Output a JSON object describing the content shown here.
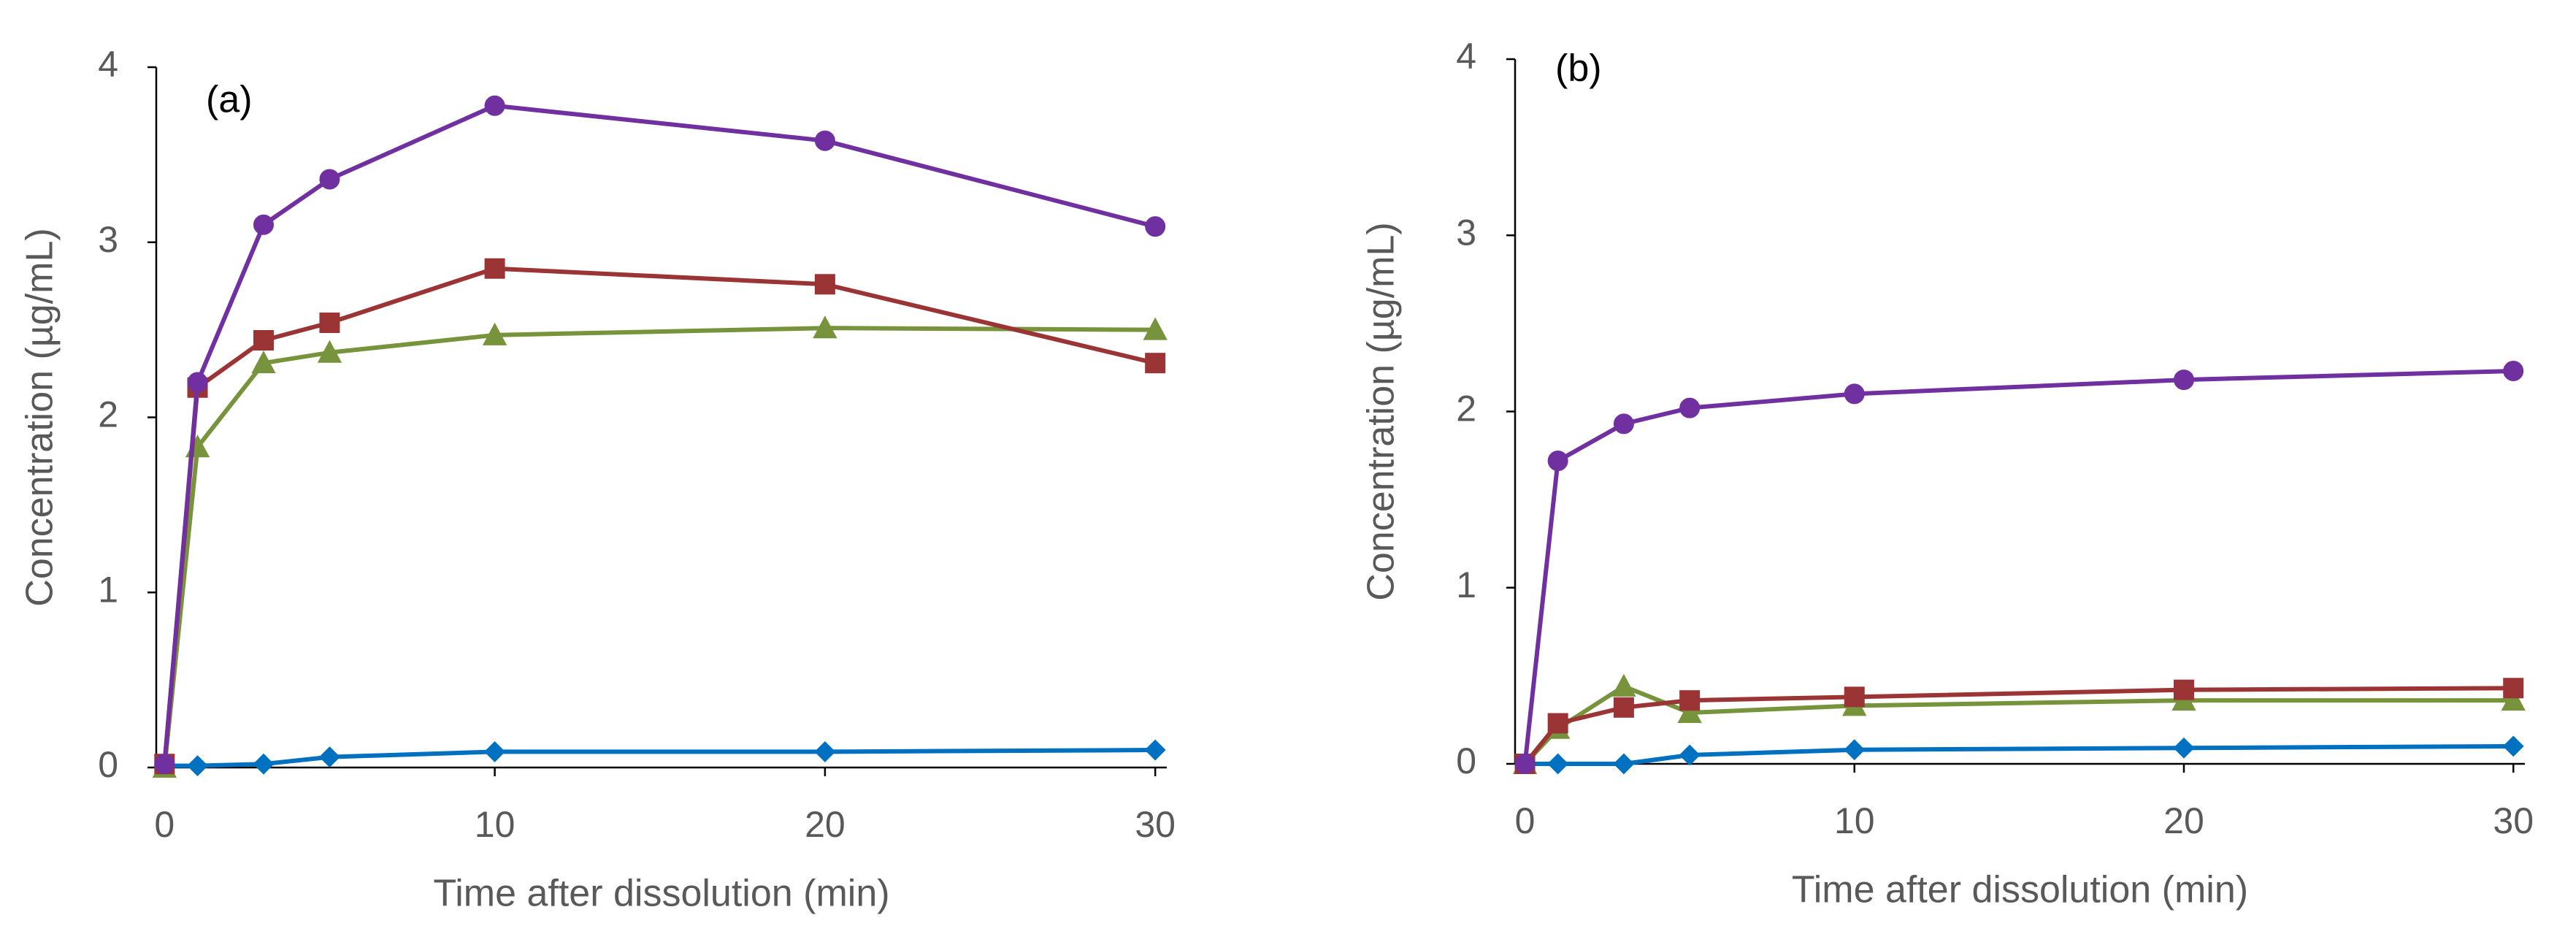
{
  "chart_data": [
    {
      "type": "line",
      "annotation": "(a)",
      "x_label": "Time after dissolution (min)",
      "y_label": "Concentration (µg/mL)",
      "x": [
        0,
        1,
        3,
        5,
        10,
        20,
        30
      ],
      "xlim": [
        -0.25,
        30.35
      ],
      "xticks": [
        0,
        10,
        20,
        30
      ],
      "ylim": [
        0,
        4
      ],
      "yticks": [
        0,
        1,
        2,
        3,
        4
      ],
      "series": [
        {
          "color": "#0070c0",
          "marker": "diamond",
          "values": [
            0.01,
            0.01,
            0.02,
            0.06,
            0.09,
            0.09,
            0.1
          ]
        },
        {
          "color": "#77933c",
          "marker": "triangle",
          "values": [
            0,
            1.83,
            2.31,
            2.37,
            2.47,
            2.51,
            2.5
          ]
        },
        {
          "color": "#9b3535",
          "marker": "square",
          "values": [
            0.02,
            2.17,
            2.44,
            2.54,
            2.85,
            2.76,
            2.31
          ]
        },
        {
          "color": "#7030a0",
          "marker": "circle",
          "values": [
            0.02,
            2.2,
            3.1,
            3.36,
            3.78,
            3.58,
            3.09
          ]
        }
      ]
    },
    {
      "type": "line",
      "annotation": "(b)",
      "x_label": "Time after dissolution (min)",
      "y_label": "Concentration (µg/mL)",
      "x": [
        0,
        1,
        3,
        5,
        10,
        20,
        30
      ],
      "xlim": [
        -0.3,
        30.35
      ],
      "xticks": [
        0,
        10,
        20,
        30
      ],
      "ylim": [
        0,
        4
      ],
      "yticks": [
        0,
        1,
        2,
        3,
        4
      ],
      "series": [
        {
          "color": "#0070c0",
          "marker": "diamond",
          "values": [
            0,
            0,
            0,
            0.05,
            0.08,
            0.09,
            0.1
          ]
        },
        {
          "color": "#77933c",
          "marker": "triangle",
          "values": [
            0,
            0.2,
            0.44,
            0.29,
            0.33,
            0.36,
            0.36
          ]
        },
        {
          "color": "#9b3535",
          "marker": "square",
          "values": [
            0,
            0.23,
            0.32,
            0.36,
            0.38,
            0.42,
            0.43
          ]
        },
        {
          "color": "#7030a0",
          "marker": "circle",
          "values": [
            0,
            1.72,
            1.93,
            2.02,
            2.1,
            2.18,
            2.23
          ]
        }
      ]
    }
  ]
}
